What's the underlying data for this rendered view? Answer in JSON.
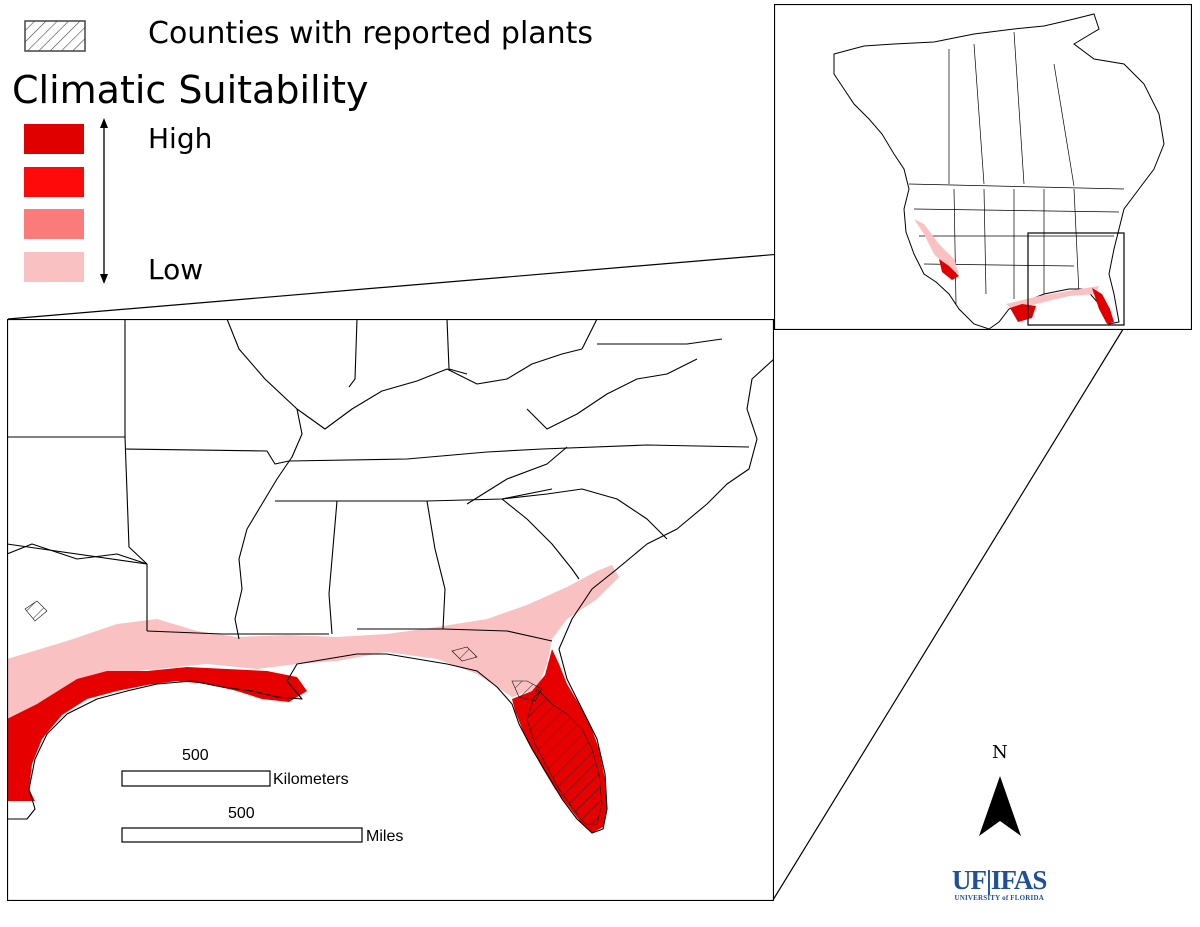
{
  "legend": {
    "hatch_label": "Counties with reported plants",
    "title": "Climatic Suitability",
    "high_label": "High",
    "low_label": "Low",
    "classes": [
      {
        "level": 4,
        "color": "#e00000"
      },
      {
        "level": 3,
        "color": "#ff0a0a"
      },
      {
        "level": 2,
        "color": "#fb7b7b"
      },
      {
        "level": 1,
        "color": "#f9c1c1"
      }
    ]
  },
  "scalebar": {
    "km_value": "500",
    "km_unit": "Kilometers",
    "mi_value": "500",
    "mi_unit": "Miles"
  },
  "north_arrow": {
    "letter": "N",
    "icon": "north-arrow-icon"
  },
  "logo": {
    "main": "UF|IFAS",
    "sub": "UNIVERSITY of FLORIDA",
    "color": "#1f4f9b"
  },
  "colors": {
    "suitability_high": "#e00000",
    "suitability_low": "#f9c1c1",
    "border": "#000000"
  }
}
